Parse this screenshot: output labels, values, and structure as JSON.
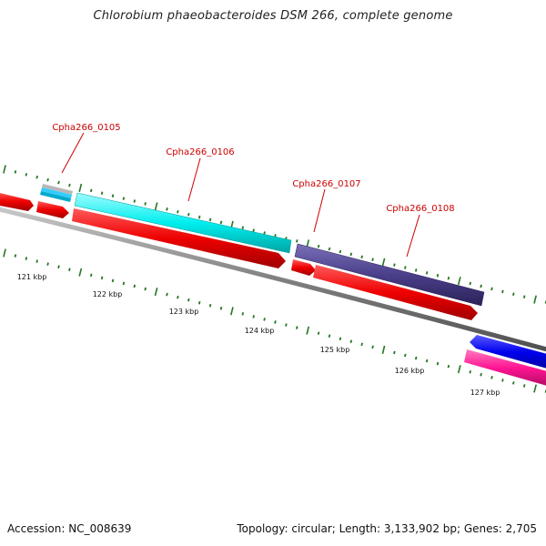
{
  "title": "Chlorobium phaeobacteroides DSM 266, complete genome",
  "footer": {
    "accession": "Accession: NC_008639",
    "summary": "Topology: circular; Length: 3,133,902 bp; Genes: 2,705"
  },
  "scale_labels": [
    "121 kbp",
    "122 kbp",
    "123 kbp",
    "124 kbp",
    "125 kbp",
    "126 kbp",
    "127 kbp"
  ],
  "gene_labels": [
    "Cpha266_0105",
    "Cpha266_0106",
    "Cpha266_0107",
    "Cpha266_0108"
  ],
  "colors": {
    "gene_label": "#cc0000",
    "cds": "#ee0000",
    "backbone": "#808080",
    "tick": "#227722",
    "gene_0106": "#00eeee",
    "gene_0107": "#4a3f8a",
    "blue_feature": "#0000ee",
    "pink_feature": "#ff1493",
    "gene_0105_stack": [
      "#b0b0b0",
      "#33ccff",
      "#00aacc"
    ]
  }
}
